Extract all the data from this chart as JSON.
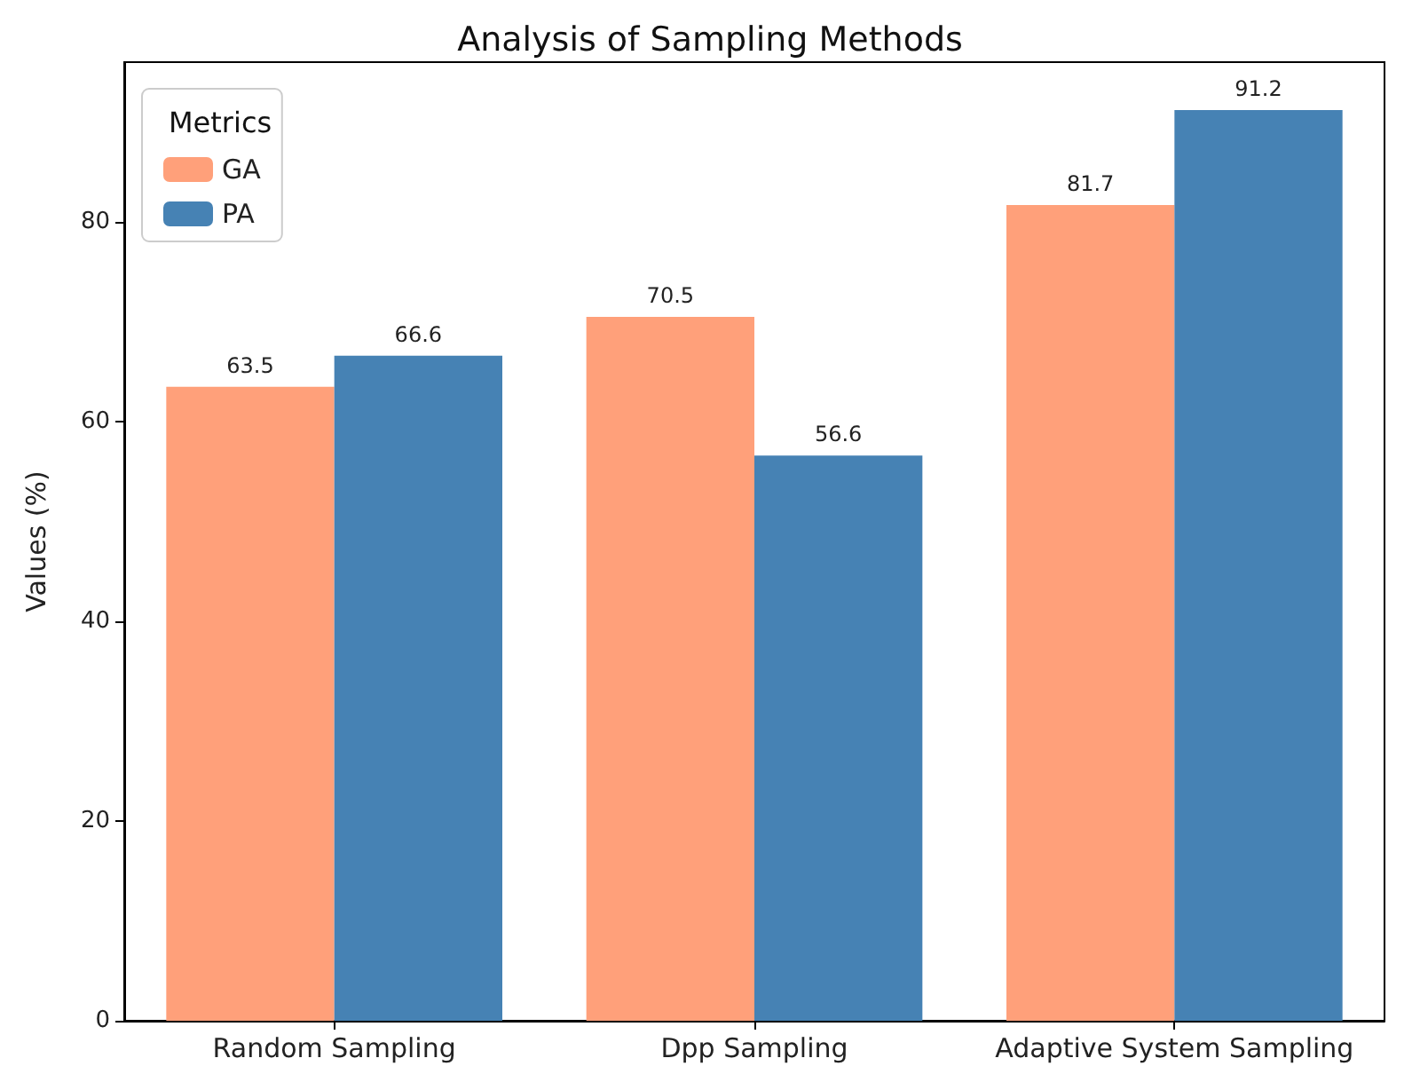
{
  "chart_data": {
    "type": "bar",
    "title": "Analysis of Sampling Methods",
    "ylabel": "Values (%)",
    "legend_title": "Metrics",
    "categories": [
      "Random Sampling",
      "Dpp Sampling",
      "Adaptive System Sampling"
    ],
    "series": [
      {
        "name": "GA",
        "color": "#ffa07a",
        "values": [
          63.5,
          70.5,
          81.7
        ]
      },
      {
        "name": "PA",
        "color": "#4682b4",
        "values": [
          66.6,
          56.6,
          91.2
        ]
      }
    ],
    "ylim": [
      0,
      96
    ],
    "yticks": [
      0,
      20,
      40,
      60,
      80
    ],
    "data_labels": true,
    "legend": "top left",
    "grid": false
  }
}
